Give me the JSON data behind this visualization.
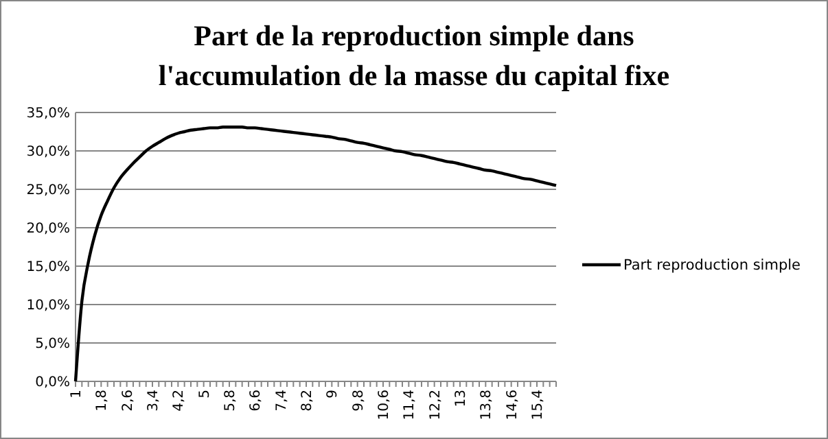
{
  "chart_data": {
    "type": "line",
    "title": "Part de la reproduction simple dans\nl'accumulation de la masse du capital fixe",
    "categories": [
      "1",
      null,
      null,
      null,
      "1,8",
      null,
      null,
      null,
      "2,6",
      null,
      null,
      null,
      "3,4",
      null,
      null,
      null,
      "4,2",
      null,
      null,
      null,
      "5",
      null,
      null,
      null,
      "5,8",
      null,
      null,
      null,
      "6,6",
      null,
      null,
      null,
      "7,4",
      null,
      null,
      null,
      "8,2",
      null,
      null,
      null,
      "9",
      null,
      null,
      null,
      "9,8",
      null,
      null,
      null,
      "10,6",
      null,
      null,
      null,
      "11,4",
      null,
      null,
      null,
      "12,2",
      null,
      null,
      null,
      "13",
      null,
      null,
      null,
      "13,8",
      null,
      null,
      null,
      "14,6",
      null,
      null,
      null,
      "15,4",
      null,
      null,
      null
    ],
    "series": [
      {
        "name": "Part reproduction simple",
        "color": "#000000",
        "values": [
          0,
          10.5,
          15.5,
          19,
          21.6,
          23.5,
          25.2,
          26.5,
          27.5,
          28.4,
          29.2,
          30,
          30.6,
          31.1,
          31.6,
          32,
          32.3,
          32.5,
          32.7,
          32.8,
          32.9,
          33,
          33,
          33.1,
          33.1,
          33.1,
          33.1,
          33,
          33,
          32.9,
          32.8,
          32.7,
          32.6,
          32.5,
          32.4,
          32.3,
          32.2,
          32.1,
          32,
          31.9,
          31.8,
          31.6,
          31.5,
          31.3,
          31.1,
          31,
          30.8,
          30.6,
          30.4,
          30.2,
          30,
          29.9,
          29.7,
          29.5,
          29.4,
          29.2,
          29,
          28.8,
          28.6,
          28.5,
          28.3,
          28.1,
          27.9,
          27.7,
          27.5,
          27.4,
          27.2,
          27,
          26.8,
          26.6,
          26.4,
          26.3,
          26.1,
          25.9,
          25.7,
          25.5
        ]
      }
    ],
    "ylim": [
      0,
      35
    ],
    "yticks": [
      {
        "value": 0,
        "label": "0,0%"
      },
      {
        "value": 5,
        "label": "5,0%"
      },
      {
        "value": 10,
        "label": "10,0%"
      },
      {
        "value": 15,
        "label": "15,0%"
      },
      {
        "value": 20,
        "label": "20,0%"
      },
      {
        "value": 25,
        "label": "25,0%"
      },
      {
        "value": 30,
        "label": "30,0%"
      },
      {
        "value": 35,
        "label": "35,0%"
      }
    ],
    "grid": "y",
    "legend": "right",
    "marker": "none",
    "line_style": "solid"
  }
}
